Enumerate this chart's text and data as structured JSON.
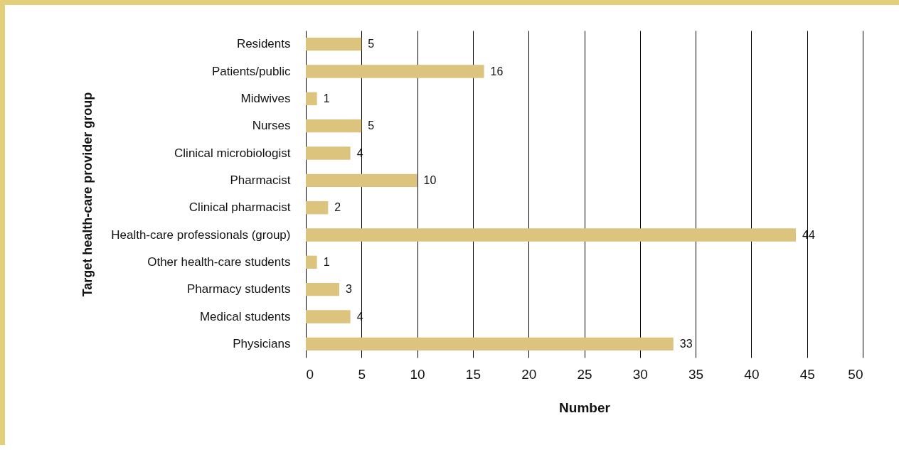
{
  "chart_data": {
    "type": "bar",
    "orientation": "horizontal",
    "xlabel": "Number",
    "ylabel": "Target health-care provider group",
    "categories": [
      "Residents",
      "Patients/public",
      "Midwives",
      "Nurses",
      "Clinical microbiologist",
      "Pharmacist",
      "Clinical pharmacist",
      "Health-care professionals (group)",
      "Other health-care students",
      "Pharmacy students",
      "Medical students",
      "Physicians"
    ],
    "values": [
      5,
      16,
      1,
      5,
      4,
      10,
      2,
      44,
      1,
      3,
      4,
      33
    ],
    "color": "#dcc47e",
    "xlim": [
      0,
      50
    ],
    "xticks": [
      0,
      5,
      10,
      15,
      20,
      25,
      30,
      35,
      40,
      45,
      50
    ],
    "grid": "x",
    "data_labels": true
  }
}
